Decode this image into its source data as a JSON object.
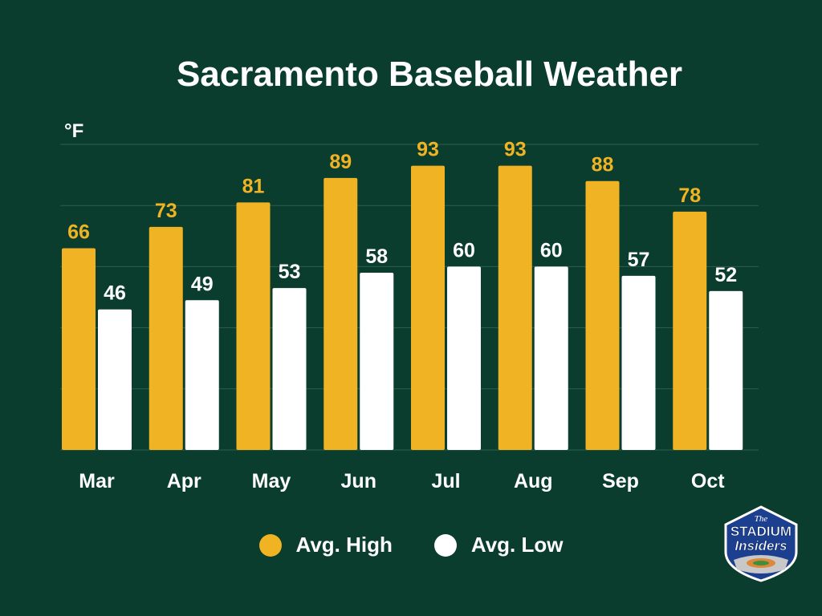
{
  "chart_data": {
    "type": "bar",
    "title": "Sacramento Baseball Weather",
    "ylabel": "°F",
    "xlabel": "",
    "categories": [
      "Mar",
      "Apr",
      "May",
      "Jun",
      "Jul",
      "Aug",
      "Sep",
      "Oct"
    ],
    "series": [
      {
        "name": "Avg. High",
        "values": [
          66,
          73,
          81,
          89,
          93,
          93,
          88,
          78
        ],
        "color": "#f0b323"
      },
      {
        "name": "Avg. Low",
        "values": [
          46,
          49,
          53,
          58,
          60,
          60,
          57,
          52
        ],
        "color": "#ffffff"
      }
    ],
    "ylim": [
      0,
      100
    ],
    "grid": true,
    "legend_position": "bottom",
    "colors": {
      "background": "#0b3d2e",
      "grid": "#2c5e4e",
      "high_label": "#f0b323",
      "low_label": "#ffffff"
    }
  },
  "logo": {
    "top_text": "The",
    "main_text": "STADIUM",
    "sub_text": "Insiders"
  }
}
